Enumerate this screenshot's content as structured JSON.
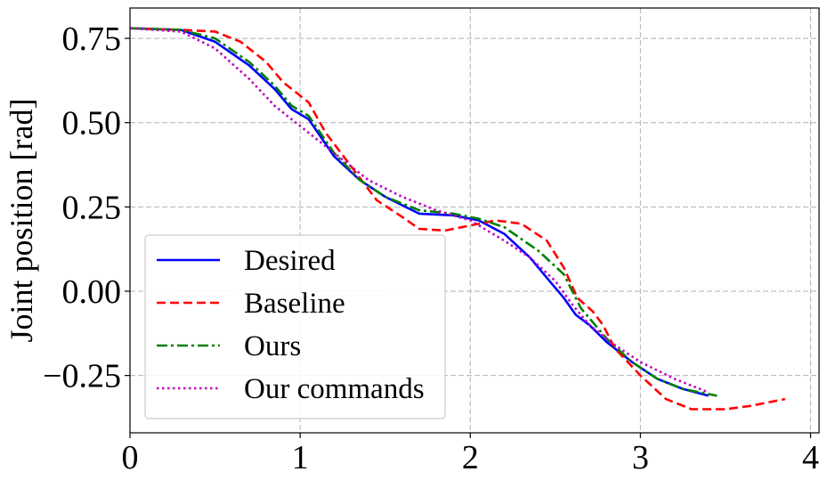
{
  "chart_data": {
    "type": "line",
    "xlabel": "",
    "ylabel": "Joint position [rad]",
    "xlim": [
      0,
      4.05
    ],
    "ylim": [
      -0.42,
      0.84
    ],
    "xticks": [
      0,
      1,
      2,
      3,
      4
    ],
    "xtick_labels": [
      "0",
      "1",
      "2",
      "3",
      "4"
    ],
    "yticks": [
      -0.25,
      0.0,
      0.25,
      0.5,
      0.75
    ],
    "ytick_labels": [
      "−0.25",
      "0.00",
      "0.25",
      "0.50",
      "0.75"
    ],
    "grid": true,
    "legend_position": "lower-left",
    "series": [
      {
        "name": "Desired",
        "color": "#0000ff",
        "style": "solid",
        "x": [
          0,
          0.3,
          0.5,
          0.7,
          0.85,
          0.95,
          1.05,
          1.2,
          1.35,
          1.5,
          1.7,
          1.9,
          2.05,
          2.2,
          2.35,
          2.45,
          2.55,
          2.62,
          2.7,
          2.8,
          2.95,
          3.1,
          3.25,
          3.4
        ],
        "y": [
          0.78,
          0.775,
          0.74,
          0.67,
          0.6,
          0.54,
          0.51,
          0.4,
          0.33,
          0.28,
          0.23,
          0.225,
          0.21,
          0.17,
          0.1,
          0.04,
          -0.02,
          -0.07,
          -0.1,
          -0.15,
          -0.21,
          -0.26,
          -0.29,
          -0.31
        ]
      },
      {
        "name": "Baseline",
        "color": "#ff0000",
        "style": "dashed",
        "x": [
          0,
          0.3,
          0.5,
          0.65,
          0.8,
          0.9,
          1.0,
          1.05,
          1.15,
          1.3,
          1.45,
          1.6,
          1.7,
          1.85,
          2.0,
          2.15,
          2.3,
          2.45,
          2.55,
          2.63,
          2.72,
          2.78,
          2.85,
          3.0,
          3.15,
          3.3,
          3.5,
          3.65,
          3.85
        ],
        "y": [
          0.78,
          0.775,
          0.77,
          0.74,
          0.68,
          0.62,
          0.58,
          0.56,
          0.47,
          0.37,
          0.27,
          0.22,
          0.185,
          0.18,
          0.195,
          0.21,
          0.2,
          0.15,
          0.07,
          -0.02,
          -0.06,
          -0.1,
          -0.17,
          -0.25,
          -0.32,
          -0.35,
          -0.35,
          -0.34,
          -0.32
        ]
      },
      {
        "name": "Ours",
        "color": "#008000",
        "style": "dashdot",
        "x": [
          0,
          0.3,
          0.5,
          0.7,
          0.85,
          0.95,
          1.05,
          1.2,
          1.35,
          1.5,
          1.7,
          1.9,
          2.05,
          2.2,
          2.4,
          2.55,
          2.65,
          2.8,
          2.95,
          3.1,
          3.25,
          3.45
        ],
        "y": [
          0.78,
          0.775,
          0.75,
          0.68,
          0.61,
          0.55,
          0.52,
          0.41,
          0.33,
          0.28,
          0.24,
          0.23,
          0.215,
          0.19,
          0.12,
          0.05,
          -0.05,
          -0.14,
          -0.21,
          -0.26,
          -0.29,
          -0.31
        ]
      },
      {
        "name": "Our commands",
        "color": "#bf00bf",
        "style": "dotted",
        "x": [
          0,
          0.3,
          0.5,
          0.7,
          0.85,
          1.0,
          1.2,
          1.4,
          1.6,
          1.8,
          2.0,
          2.2,
          2.35,
          2.5,
          2.6,
          2.7,
          2.85,
          3.0,
          3.2,
          3.4
        ],
        "y": [
          0.78,
          0.77,
          0.72,
          0.63,
          0.55,
          0.49,
          0.41,
          0.33,
          0.28,
          0.24,
          0.21,
          0.15,
          0.1,
          0.03,
          -0.04,
          -0.1,
          -0.16,
          -0.21,
          -0.26,
          -0.3
        ]
      }
    ]
  }
}
